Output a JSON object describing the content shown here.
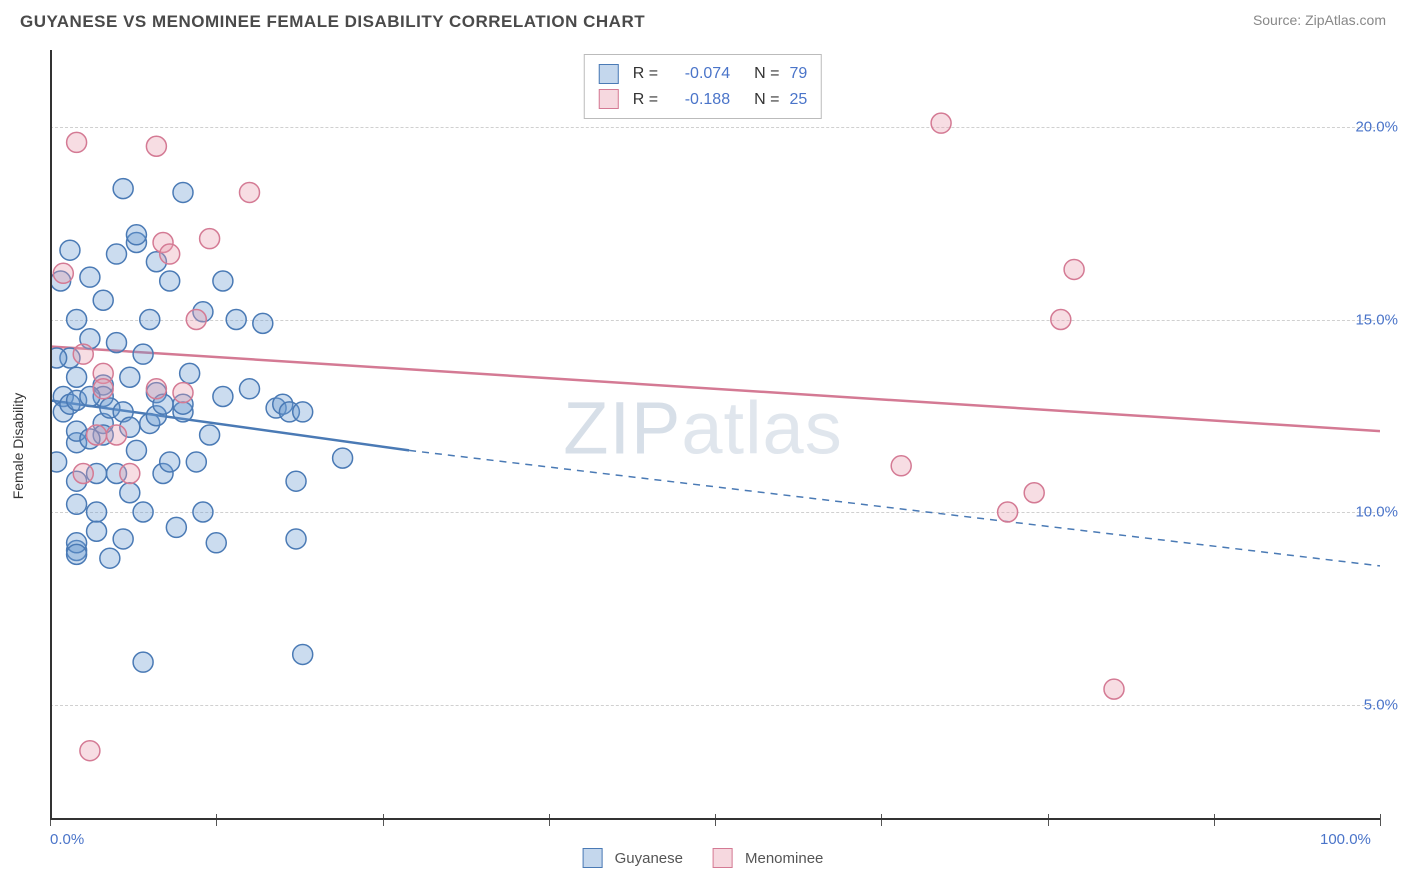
{
  "header": {
    "title": "GUYANESE VS MENOMINEE FEMALE DISABILITY CORRELATION CHART",
    "source": "Source: ZipAtlas.com"
  },
  "watermark": {
    "bold": "ZIP",
    "thin": "atlas"
  },
  "axes": {
    "ylabel": "Female Disability",
    "xlim": [
      0,
      100
    ],
    "ylim": [
      2,
      22
    ],
    "xticks": [
      0,
      12.5,
      25,
      37.5,
      50,
      62.5,
      75,
      87.5,
      100
    ],
    "xtick_labels": {
      "0": "0.0%",
      "100": "100.0%"
    },
    "yticks": [
      5,
      10,
      15,
      20
    ],
    "ytick_labels": {
      "5": "5.0%",
      "10": "10.0%",
      "15": "15.0%",
      "20": "20.0%"
    },
    "grid_color": "#d0d0d0",
    "axis_color": "#333333",
    "tick_label_color": "#4a74c9",
    "label_fontsize": 14,
    "tick_fontsize": 15
  },
  "chart": {
    "type": "scatter",
    "background_color": "#ffffff",
    "marker_radius": 10,
    "marker_stroke_width": 1.5,
    "marker_fill_opacity": 0.35,
    "series": [
      {
        "name": "Guyanese",
        "color": "#6b9bd1",
        "stroke": "#4a7ab5",
        "r_value": "-0.074",
        "n_value": "79",
        "trend": {
          "solid_from": [
            0,
            12.9
          ],
          "solid_to": [
            27,
            11.6
          ],
          "dashed_from": [
            27,
            11.6
          ],
          "dashed_to": [
            100,
            8.6
          ],
          "width": 2.5
        },
        "points": [
          [
            1,
            13.0
          ],
          [
            1,
            12.6
          ],
          [
            1.5,
            12.8
          ],
          [
            1.5,
            14.0
          ],
          [
            2,
            12.9
          ],
          [
            2,
            13.5
          ],
          [
            2,
            11.8
          ],
          [
            2,
            12.1
          ],
          [
            2,
            9.0
          ],
          [
            2,
            9.2
          ],
          [
            2,
            8.9
          ],
          [
            2,
            10.2
          ],
          [
            2,
            10.8
          ],
          [
            0.5,
            11.3
          ],
          [
            0.5,
            14.0
          ],
          [
            0.8,
            16.0
          ],
          [
            1.5,
            16.8
          ],
          [
            2,
            15.0
          ],
          [
            3,
            16.1
          ],
          [
            3,
            14.5
          ],
          [
            3.5,
            10.0
          ],
          [
            3.5,
            9.5
          ],
          [
            3.5,
            11.0
          ],
          [
            4,
            13.3
          ],
          [
            4,
            13.0
          ],
          [
            4,
            12.3
          ],
          [
            4,
            12.0
          ],
          [
            4,
            15.5
          ],
          [
            4.5,
            12.7
          ],
          [
            4.5,
            8.8
          ],
          [
            5,
            14.4
          ],
          [
            5,
            16.7
          ],
          [
            5,
            11.0
          ],
          [
            5.5,
            12.6
          ],
          [
            5.5,
            9.3
          ],
          [
            5.5,
            18.4
          ],
          [
            6,
            13.5
          ],
          [
            6,
            10.5
          ],
          [
            6.5,
            11.6
          ],
          [
            6.5,
            17.0
          ],
          [
            6.5,
            17.2
          ],
          [
            7,
            14.1
          ],
          [
            7,
            10.0
          ],
          [
            7.5,
            15.0
          ],
          [
            7.5,
            12.3
          ],
          [
            8,
            16.5
          ],
          [
            8,
            12.5
          ],
          [
            8,
            13.1
          ],
          [
            8.5,
            11.0
          ],
          [
            8.5,
            12.8
          ],
          [
            9,
            16.0
          ],
          [
            9,
            11.3
          ],
          [
            9.5,
            9.6
          ],
          [
            10,
            12.6
          ],
          [
            10,
            12.8
          ],
          [
            10,
            18.3
          ],
          [
            10.5,
            13.6
          ],
          [
            11,
            11.3
          ],
          [
            11.5,
            10.0
          ],
          [
            11.5,
            15.2
          ],
          [
            12,
            12.0
          ],
          [
            12.5,
            9.2
          ],
          [
            13,
            13.0
          ],
          [
            13,
            16.0
          ],
          [
            14,
            15.0
          ],
          [
            15,
            13.2
          ],
          [
            16,
            14.9
          ],
          [
            17,
            12.7
          ],
          [
            17.5,
            12.8
          ],
          [
            18,
            12.6
          ],
          [
            18.5,
            10.8
          ],
          [
            18.5,
            9.3
          ],
          [
            19,
            12.6
          ],
          [
            19,
            6.3
          ],
          [
            22,
            11.4
          ],
          [
            7,
            6.1
          ],
          [
            3,
            11.9
          ],
          [
            3,
            13.0
          ],
          [
            6,
            12.2
          ]
        ]
      },
      {
        "name": "Menominee",
        "color": "#e89db0",
        "stroke": "#d47a94",
        "r_value": "-0.188",
        "n_value": "25",
        "trend": {
          "solid_from": [
            0,
            14.3
          ],
          "solid_to": [
            100,
            12.1
          ],
          "width": 2.5
        },
        "points": [
          [
            1,
            16.2
          ],
          [
            2,
            19.6
          ],
          [
            2.5,
            14.1
          ],
          [
            2.5,
            11.0
          ],
          [
            3,
            3.8
          ],
          [
            3.5,
            12.0
          ],
          [
            4,
            13.6
          ],
          [
            4,
            13.2
          ],
          [
            5,
            12.0
          ],
          [
            6,
            11.0
          ],
          [
            8,
            19.5
          ],
          [
            8,
            13.2
          ],
          [
            8.5,
            17.0
          ],
          [
            9,
            16.7
          ],
          [
            10,
            13.1
          ],
          [
            11,
            15.0
          ],
          [
            12,
            17.1
          ],
          [
            15,
            18.3
          ],
          [
            64,
            11.2
          ],
          [
            67,
            20.1
          ],
          [
            72,
            10.0
          ],
          [
            74,
            10.5
          ],
          [
            76,
            15.0
          ],
          [
            77,
            16.3
          ],
          [
            80,
            5.4
          ]
        ]
      }
    ]
  },
  "legend_top": {
    "R_label": "R =",
    "N_label": "N ="
  },
  "legend_bottom": {
    "items": [
      "Guyanese",
      "Menominee"
    ]
  }
}
